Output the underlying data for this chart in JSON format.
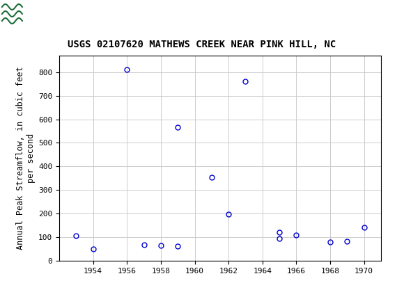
{
  "title": "USGS 02107620 MATHEWS CREEK NEAR PINK HILL, NC",
  "ylabel": "Annual Peak Streamflow, in cubic feet\nper second",
  "data_points": [
    [
      1953,
      107
    ],
    [
      1954,
      50
    ],
    [
      1956,
      810
    ],
    [
      1957,
      68
    ],
    [
      1958,
      64
    ],
    [
      1959,
      62
    ],
    [
      1959,
      565
    ],
    [
      1961,
      355
    ],
    [
      1962,
      197
    ],
    [
      1963,
      760
    ],
    [
      1965,
      120
    ],
    [
      1965,
      95
    ],
    [
      1966,
      108
    ],
    [
      1968,
      80
    ],
    [
      1969,
      82
    ],
    [
      1970,
      143
    ]
  ],
  "marker_color": "#0000CC",
  "marker_facecolor": "none",
  "marker_size": 5,
  "marker_style": "o",
  "xlim": [
    1952,
    1971
  ],
  "ylim": [
    0,
    870
  ],
  "xticks": [
    1954,
    1956,
    1958,
    1960,
    1962,
    1964,
    1966,
    1968,
    1970
  ],
  "yticks": [
    0,
    100,
    200,
    300,
    400,
    500,
    600,
    700,
    800
  ],
  "grid_color": "#cccccc",
  "background_color": "#ffffff",
  "header_bg_color": "#1a6b3a",
  "header_text_color": "#ffffff",
  "title_fontsize": 10,
  "axis_label_fontsize": 8.5,
  "tick_fontsize": 8
}
